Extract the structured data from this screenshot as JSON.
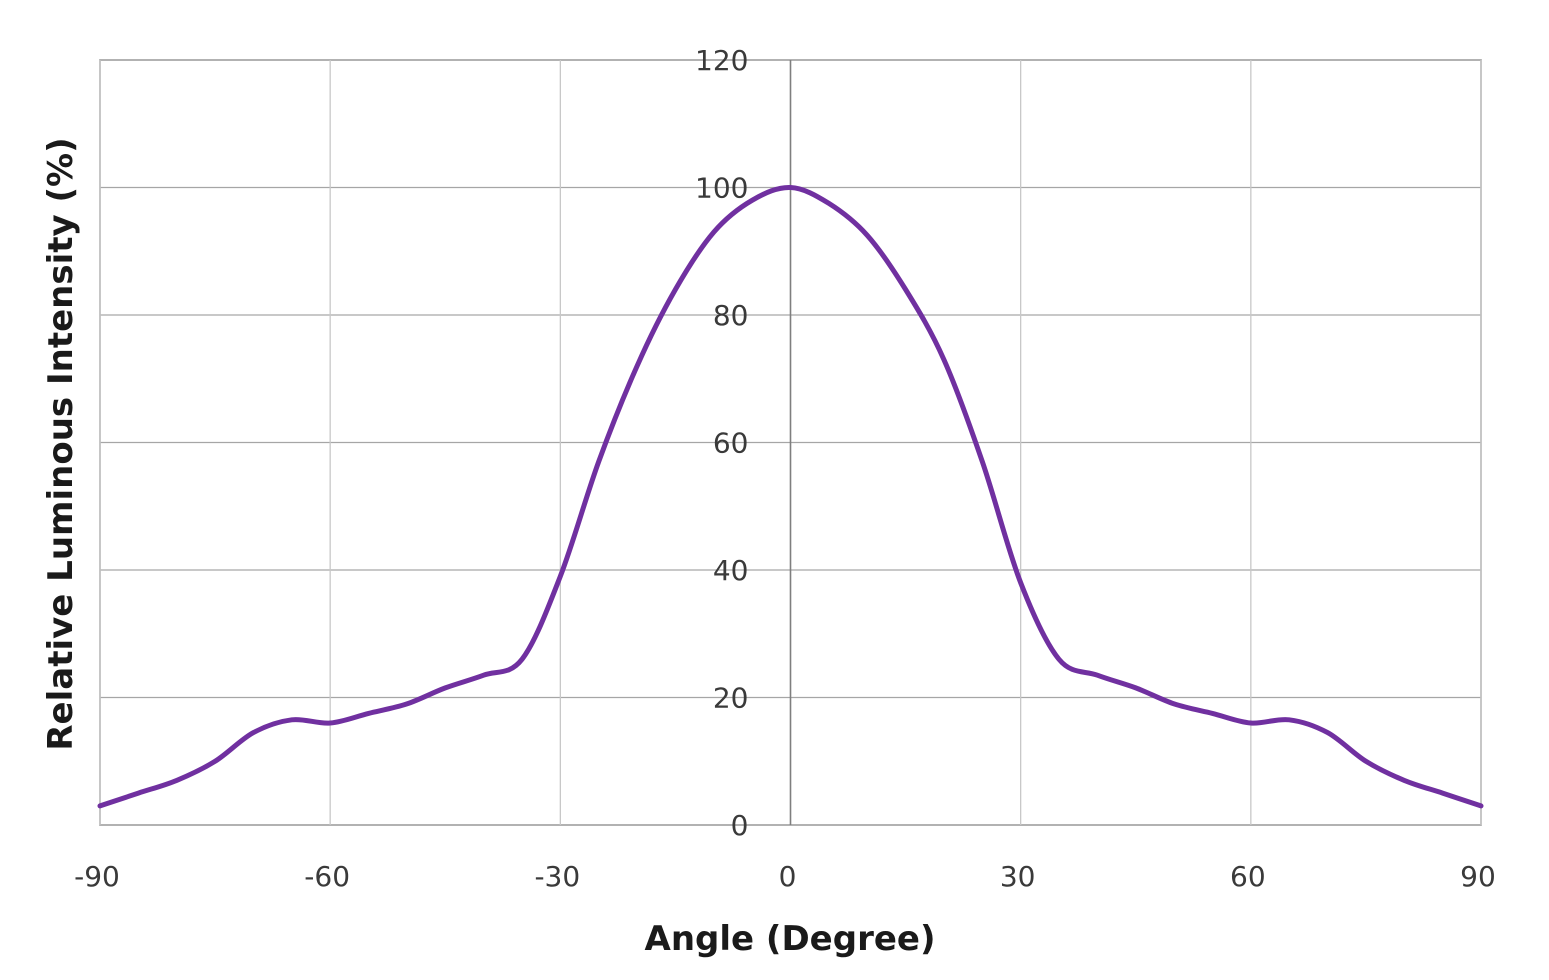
{
  "chart_data": {
    "type": "line",
    "title": "",
    "xlabel": "Angle (Degree)",
    "ylabel": "Relative Luminous Intensity (%)",
    "xlim": [
      -90,
      90
    ],
    "ylim": [
      0,
      120
    ],
    "xticks": [
      -90,
      -60,
      -30,
      0,
      30,
      60,
      90
    ],
    "yticks": [
      0,
      20,
      40,
      60,
      80,
      100,
      120
    ],
    "x_tick_labels": [
      "-90",
      "-60",
      "-30",
      "0",
      "30",
      "60",
      "90"
    ],
    "y_tick_labels": [
      "0",
      "20",
      "40",
      "60",
      "80",
      "100",
      "120"
    ],
    "grid": true,
    "legend": "none",
    "series_color": "#7030a0",
    "series": [
      {
        "x": [
          -90,
          -85,
          -80,
          -75,
          -70,
          -65,
          -60,
          -55,
          -50,
          -45,
          -40,
          -35,
          -30,
          -25,
          -20,
          -15,
          -10,
          -5,
          0,
          5,
          10,
          15,
          20,
          25,
          30,
          35,
          40,
          45,
          50,
          55,
          60,
          65,
          70,
          75,
          80,
          85,
          90
        ],
        "values": [
          3,
          5,
          7,
          10,
          14.5,
          16.5,
          16,
          17.5,
          19,
          21.5,
          23.5,
          26,
          39,
          57,
          72,
          84,
          93,
          98,
          100,
          97.5,
          92.5,
          84,
          73,
          57,
          38,
          26,
          23.5,
          21.5,
          19,
          17.5,
          16,
          16.5,
          14.5,
          10,
          7,
          5,
          3
        ]
      }
    ]
  }
}
